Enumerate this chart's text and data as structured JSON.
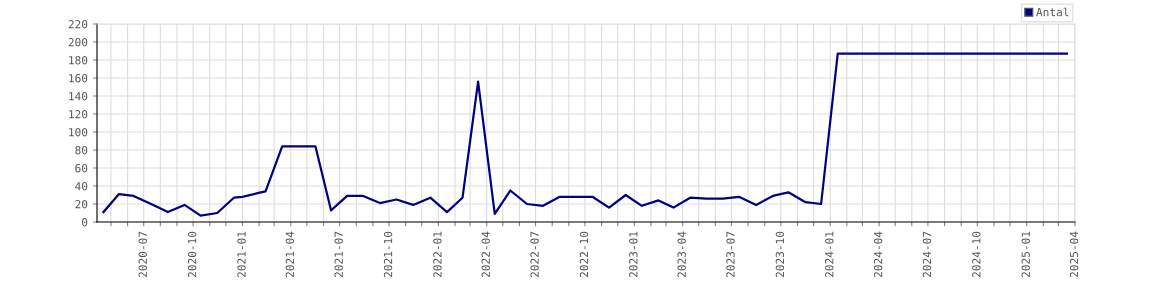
{
  "chart_data": {
    "type": "line",
    "x": [
      "2020-04-17",
      "2020-05-16",
      "2020-06-12",
      "2020-07-15",
      "2020-08-15",
      "2020-09-15",
      "2020-10-15",
      "2020-11-15",
      "2020-12-16",
      "2021-01-01",
      "2021-01-29",
      "2021-02-13",
      "2021-03-16",
      "2021-04-16",
      "2021-05-17",
      "2021-06-15",
      "2021-07-15",
      "2021-08-14",
      "2021-09-14",
      "2021-10-15",
      "2021-11-15",
      "2021-12-17",
      "2022-01-17",
      "2022-02-15",
      "2022-03-16",
      "2022-04-16",
      "2022-05-15",
      "2022-06-15",
      "2022-07-15",
      "2022-08-15",
      "2022-09-15",
      "2022-10-15",
      "2022-11-15",
      "2022-12-16",
      "2023-01-15",
      "2023-02-15",
      "2023-03-15",
      "2023-04-15",
      "2023-05-15",
      "2023-06-15",
      "2023-07-15",
      "2023-08-16",
      "2023-09-16",
      "2023-10-15",
      "2023-11-16",
      "2023-12-15",
      "2024-01-15",
      "2024-02-15",
      "2024-03-15",
      "2024-04-15",
      "2024-05-15",
      "2024-06-15",
      "2024-07-15",
      "2024-08-15",
      "2024-09-15",
      "2024-10-15",
      "2024-11-15",
      "2024-12-15",
      "2025-01-15",
      "2025-02-15",
      "2025-03-17"
    ],
    "series": [
      {
        "name": "Antal",
        "color": "#000080",
        "values": [
          11,
          31,
          29,
          20,
          11,
          19,
          7,
          10,
          27,
          28,
          32,
          34,
          84,
          84,
          84,
          13,
          29,
          29,
          21,
          25,
          19,
          27,
          11,
          27,
          156,
          9,
          35,
          20,
          18,
          28,
          28,
          28,
          16,
          30,
          18,
          24,
          16,
          27,
          26,
          26,
          28,
          19,
          29,
          33,
          22,
          20,
          187,
          187,
          187,
          187,
          187,
          187,
          187,
          187,
          187,
          187,
          187,
          187,
          187,
          187,
          187
        ]
      }
    ],
    "xlim": [
      "2020-04-05",
      "2025-04-01"
    ],
    "xticks": [
      {
        "value": "2020-05-01",
        "label": null
      },
      {
        "value": "2020-06-01",
        "label": null
      },
      {
        "value": "2020-07-01",
        "label": "2020-07"
      },
      {
        "value": "2020-08-01",
        "label": null
      },
      {
        "value": "2020-09-01",
        "label": null
      },
      {
        "value": "2020-10-01",
        "label": "2020-10"
      },
      {
        "value": "2020-11-01",
        "label": null
      },
      {
        "value": "2020-12-01",
        "label": null
      },
      {
        "value": "2021-01-01",
        "label": "2021-01"
      },
      {
        "value": "2021-02-01",
        "label": null
      },
      {
        "value": "2021-03-01",
        "label": null
      },
      {
        "value": "2021-04-01",
        "label": "2021-04"
      },
      {
        "value": "2021-05-01",
        "label": null
      },
      {
        "value": "2021-06-01",
        "label": null
      },
      {
        "value": "2021-07-01",
        "label": "2021-07"
      },
      {
        "value": "2021-08-01",
        "label": null
      },
      {
        "value": "2021-09-01",
        "label": null
      },
      {
        "value": "2021-10-01",
        "label": "2021-10"
      },
      {
        "value": "2021-11-01",
        "label": null
      },
      {
        "value": "2021-12-01",
        "label": null
      },
      {
        "value": "2022-01-01",
        "label": "2022-01"
      },
      {
        "value": "2022-02-01",
        "label": null
      },
      {
        "value": "2022-03-01",
        "label": null
      },
      {
        "value": "2022-04-01",
        "label": "2022-04"
      },
      {
        "value": "2022-05-01",
        "label": null
      },
      {
        "value": "2022-06-01",
        "label": null
      },
      {
        "value": "2022-07-01",
        "label": "2022-07"
      },
      {
        "value": "2022-08-01",
        "label": null
      },
      {
        "value": "2022-09-01",
        "label": null
      },
      {
        "value": "2022-10-01",
        "label": "2022-10"
      },
      {
        "value": "2022-11-01",
        "label": null
      },
      {
        "value": "2022-12-01",
        "label": null
      },
      {
        "value": "2023-01-01",
        "label": "2023-01"
      },
      {
        "value": "2023-02-01",
        "label": null
      },
      {
        "value": "2023-03-01",
        "label": null
      },
      {
        "value": "2023-04-01",
        "label": "2023-04"
      },
      {
        "value": "2023-05-01",
        "label": null
      },
      {
        "value": "2023-06-01",
        "label": null
      },
      {
        "value": "2023-07-01",
        "label": "2023-07"
      },
      {
        "value": "2023-08-01",
        "label": null
      },
      {
        "value": "2023-09-01",
        "label": null
      },
      {
        "value": "2023-10-01",
        "label": "2023-10"
      },
      {
        "value": "2023-11-01",
        "label": null
      },
      {
        "value": "2023-12-01",
        "label": null
      },
      {
        "value": "2024-01-01",
        "label": "2024-01"
      },
      {
        "value": "2024-02-01",
        "label": null
      },
      {
        "value": "2024-03-01",
        "label": null
      },
      {
        "value": "2024-04-01",
        "label": "2024-04"
      },
      {
        "value": "2024-05-01",
        "label": null
      },
      {
        "value": "2024-06-01",
        "label": null
      },
      {
        "value": "2024-07-01",
        "label": "2024-07"
      },
      {
        "value": "2024-08-01",
        "label": null
      },
      {
        "value": "2024-09-01",
        "label": null
      },
      {
        "value": "2024-10-01",
        "label": "2024-10"
      },
      {
        "value": "2024-11-01",
        "label": null
      },
      {
        "value": "2024-12-01",
        "label": null
      },
      {
        "value": "2025-01-01",
        "label": "2025-01"
      },
      {
        "value": "2025-02-01",
        "label": null
      },
      {
        "value": "2025-03-01",
        "label": null
      },
      {
        "value": "2025-04-01",
        "label": "2025-04"
      }
    ],
    "ylim": [
      0,
      220
    ],
    "yticks": [
      0,
      20,
      40,
      60,
      80,
      100,
      120,
      140,
      160,
      180,
      200,
      220
    ],
    "grid": true,
    "legend": "top right",
    "marker": "none",
    "line_style": "solid"
  }
}
